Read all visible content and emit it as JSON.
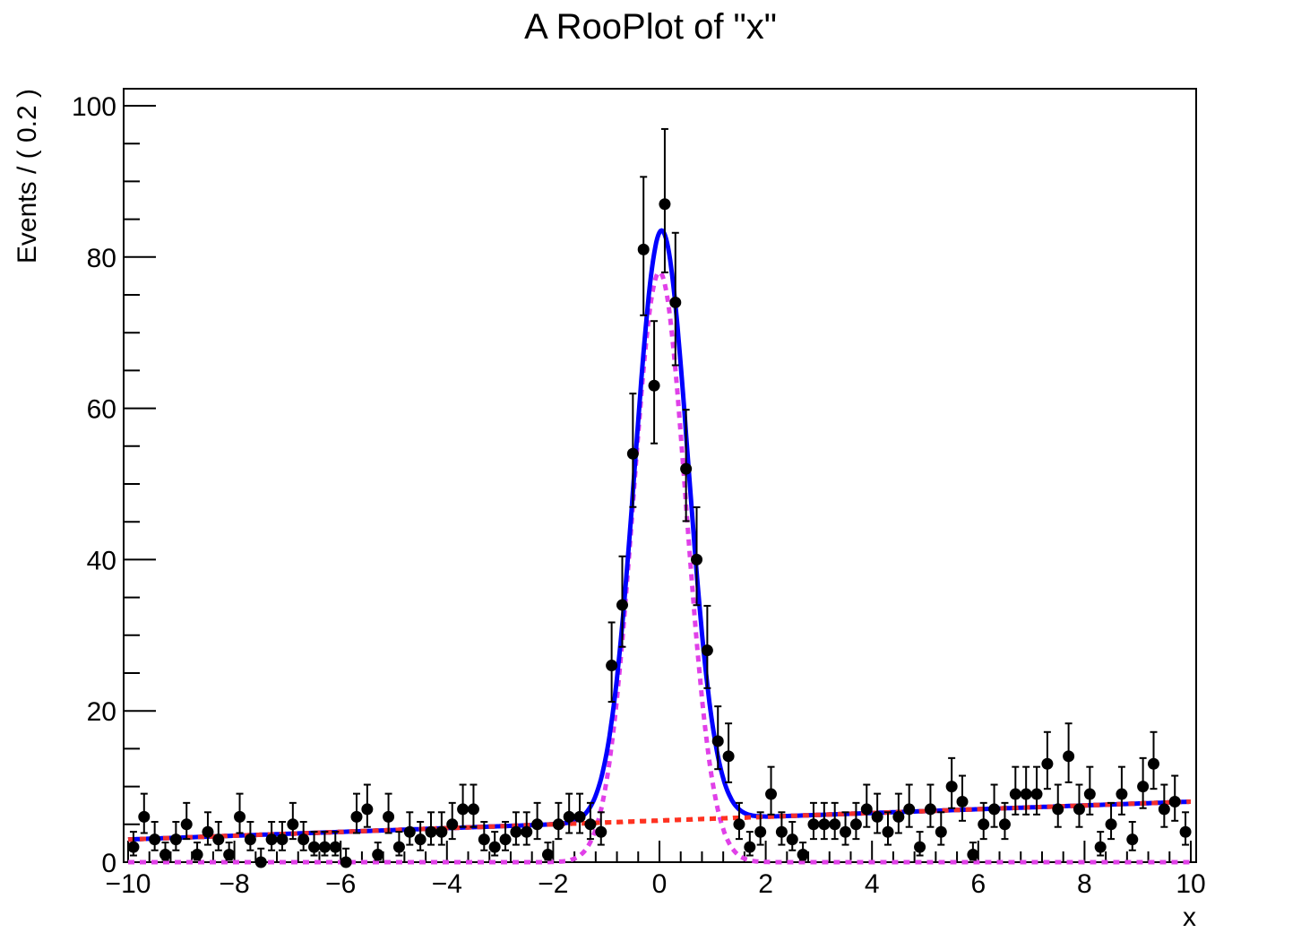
{
  "chart_data": {
    "type": "scatter",
    "title": "A RooPlot of \"x\"",
    "xlabel": "x",
    "ylabel": "Events / ( 0.2 )",
    "xlim": [
      -10,
      10
    ],
    "ylim": [
      0,
      102
    ],
    "x_ticks": [
      -10,
      -8,
      -6,
      -4,
      -2,
      0,
      2,
      4,
      6,
      8,
      10
    ],
    "x_tick_labels": [
      "−10",
      "−8",
      "−6",
      "−4",
      "−2",
      "0",
      "2",
      "4",
      "6",
      "8",
      "10"
    ],
    "y_ticks": [
      0,
      20,
      40,
      60,
      80,
      100
    ],
    "y_tick_labels": [
      "0",
      "20",
      "40",
      "60",
      "80",
      "100"
    ],
    "grid": false,
    "legend": "none",
    "series": [
      {
        "kind": "data points with error bars",
        "color": "#000000",
        "x": [
          -9.9,
          -9.7,
          -9.5,
          -9.3,
          -9.1,
          -8.9,
          -8.7,
          -8.5,
          -8.3,
          -8.1,
          -7.9,
          -7.7,
          -7.5,
          -7.3,
          -7.1,
          -6.9,
          -6.7,
          -6.5,
          -6.3,
          -6.1,
          -5.9,
          -5.7,
          -5.5,
          -5.3,
          -5.1,
          -4.9,
          -4.7,
          -4.5,
          -4.3,
          -4.1,
          -3.9,
          -3.7,
          -3.5,
          -3.3,
          -3.1,
          -2.9,
          -2.7,
          -2.5,
          -2.3,
          -2.1,
          -1.9,
          -1.7,
          -1.5,
          -1.3,
          -1.1,
          -0.9,
          -0.7,
          -0.5,
          -0.3,
          -0.1,
          0.1,
          0.3,
          0.5,
          0.7,
          0.9,
          1.1,
          1.3,
          1.5,
          1.7,
          1.9,
          2.1,
          2.3,
          2.5,
          2.7,
          2.9,
          3.1,
          3.3,
          3.5,
          3.7,
          3.9,
          4.1,
          4.3,
          4.5,
          4.7,
          4.9,
          5.1,
          5.3,
          5.5,
          5.7,
          5.9,
          6.1,
          6.3,
          6.5,
          6.7,
          6.9,
          7.1,
          7.3,
          7.5,
          7.7,
          7.9,
          8.1,
          8.3,
          8.5,
          8.7,
          8.9,
          9.1,
          9.3,
          9.5,
          9.7,
          9.9
        ],
        "y": [
          2,
          6,
          3,
          1,
          3,
          5,
          1,
          4,
          3,
          1,
          6,
          3,
          0,
          3,
          3,
          5,
          3,
          2,
          2,
          2,
          0,
          6,
          7,
          1,
          6,
          2,
          4,
          3,
          4,
          4,
          5,
          7,
          7,
          3,
          2,
          3,
          4,
          4,
          5,
          1,
          5,
          6,
          6,
          5,
          4,
          26,
          34,
          54,
          81,
          63,
          87,
          74,
          52,
          40,
          28,
          16,
          14,
          5,
          2,
          4,
          9,
          4,
          3,
          1,
          5,
          5,
          5,
          4,
          5,
          7,
          6,
          4,
          6,
          7,
          2,
          7,
          4,
          10,
          8,
          1,
          5,
          7,
          5,
          9,
          9,
          9,
          13,
          7,
          14,
          7,
          9,
          2,
          5,
          9,
          3,
          10,
          13,
          7,
          8,
          4
        ]
      },
      {
        "name": "",
        "kind": "total fit",
        "color": "#0000ff",
        "style": "solid"
      },
      {
        "name": "",
        "kind": "background component",
        "color": "#ff3322",
        "style": "dashed"
      },
      {
        "name": "",
        "kind": "signal component",
        "color": "#e040e8",
        "style": "dashed"
      }
    ],
    "model": {
      "background_line": {
        "a": 5.5,
        "b": 0.25
      },
      "signal": {
        "mean": 0.0,
        "sigma": 0.5,
        "amplitude": 78
      },
      "peak_offset": 0.04
    }
  }
}
